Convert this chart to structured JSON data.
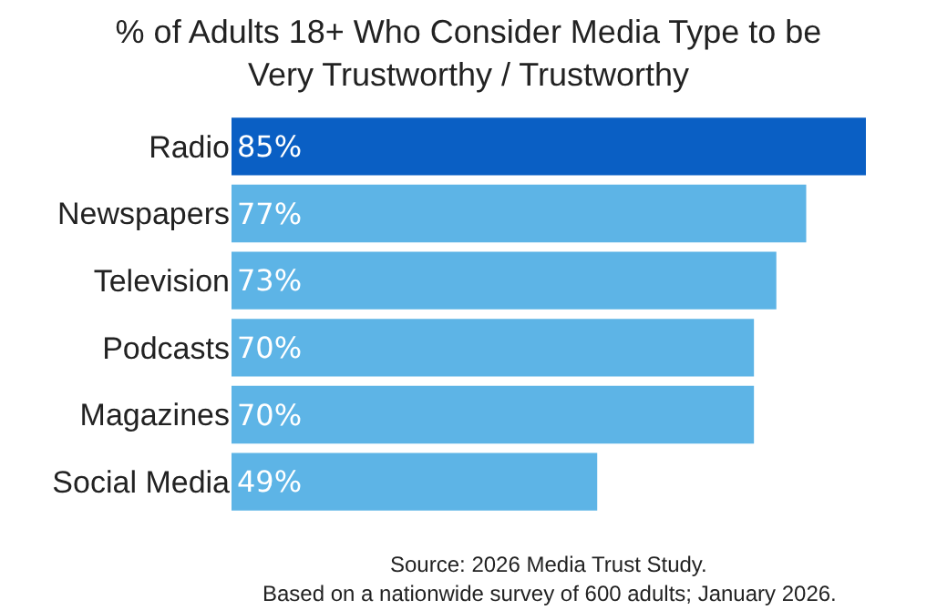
{
  "chart_data": {
    "type": "bar",
    "orientation": "horizontal",
    "title": "% of Adults 18+ Who Consider Media Type to be\nVery Trustworthy / Trustworthy",
    "categories": [
      "Radio",
      "Newspapers",
      "Television",
      "Podcasts",
      "Magazines",
      "Social Media"
    ],
    "values": [
      85,
      77,
      73,
      70,
      70,
      49
    ],
    "value_labels": [
      "85%",
      "77%",
      "73%",
      "70%",
      "70%",
      "49%"
    ],
    "colors": [
      "#0a5fc4",
      "#5db4e6",
      "#5db4e6",
      "#5db4e6",
      "#5db4e6",
      "#5db4e6"
    ],
    "annotations": [
      "Source: 2026 Media Trust Study.",
      "Based on a nationwide survey of 600 adults; January 2026."
    ]
  }
}
